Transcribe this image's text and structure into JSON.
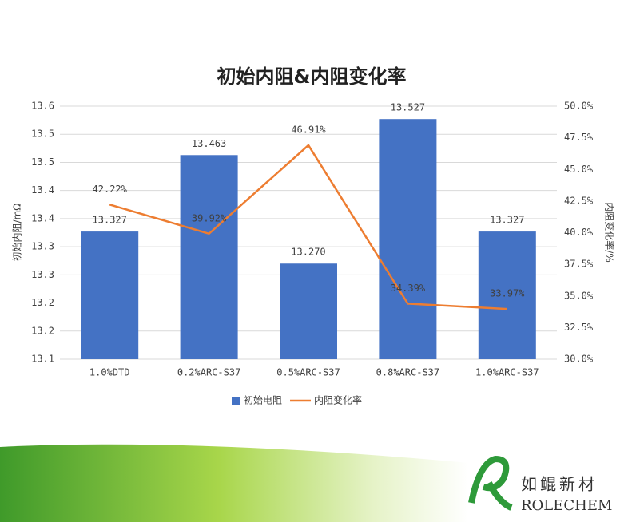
{
  "chart_data": {
    "type": "bar-line",
    "title": "初始内阻&内阻变化率",
    "y_label": "初始内阻/mΩ",
    "y2_label": "内阻变化率/%",
    "categories": [
      "1.0%DTD",
      "0.2%ARC-S37",
      "0.5%ARC-S37",
      "0.8%ARC-S37",
      "1.0%ARC-S37"
    ],
    "series": [
      {
        "name": "初始电阻",
        "type": "bar",
        "color": "#4472c4",
        "values": [
          13.327,
          13.463,
          13.27,
          13.527,
          13.327
        ],
        "value_labels": [
          "13.327",
          "13.463",
          "13.270",
          "13.527",
          "13.327"
        ]
      },
      {
        "name": "内阻变化率",
        "type": "line",
        "axis": "y2",
        "color": "#ed7d31",
        "values": [
          42.22,
          39.92,
          46.91,
          34.39,
          33.97
        ],
        "value_labels": [
          "42.22%",
          "39.92%",
          "46.91%",
          "34.39%",
          "33.97%"
        ]
      }
    ],
    "ylim": [
      13.1,
      13.55
    ],
    "yticks": [
      {
        "value": 13.1,
        "label": "13.1"
      },
      {
        "value": 13.15,
        "label": "13.2"
      },
      {
        "value": 13.2,
        "label": "13.2"
      },
      {
        "value": 13.25,
        "label": "13.3"
      },
      {
        "value": 13.3,
        "label": "13.3"
      },
      {
        "value": 13.35,
        "label": "13.4"
      },
      {
        "value": 13.4,
        "label": "13.4"
      },
      {
        "value": 13.45,
        "label": "13.5"
      },
      {
        "value": 13.5,
        "label": "13.5"
      },
      {
        "value": 13.55,
        "label": "13.6"
      }
    ],
    "y2lim": [
      30,
      50
    ],
    "y2ticks": [
      {
        "value": 30,
        "label": "30.0%"
      },
      {
        "value": 32.5,
        "label": "32.5%"
      },
      {
        "value": 35,
        "label": "35.0%"
      },
      {
        "value": 37.5,
        "label": "37.5%"
      },
      {
        "value": 40,
        "label": "40.0%"
      },
      {
        "value": 42.5,
        "label": "42.5%"
      },
      {
        "value": 45,
        "label": "45.0%"
      },
      {
        "value": 47.5,
        "label": "47.5%"
      },
      {
        "value": 50,
        "label": "50.0%"
      }
    ],
    "grid": true
  },
  "logo": {
    "name": "如鲲新材",
    "brand": "ROLECHEM"
  }
}
